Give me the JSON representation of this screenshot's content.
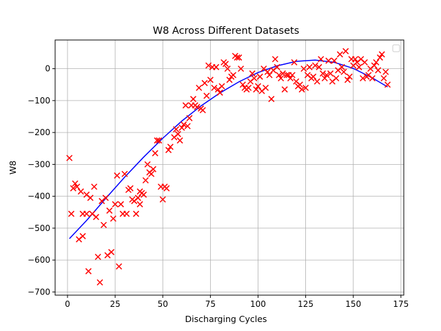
{
  "chart_data": {
    "type": "scatter",
    "title": "W8 Across Different Datasets",
    "xlabel": "Discharging Cycles",
    "ylabel": "W8",
    "xlim": [
      -6.5,
      176.5
    ],
    "ylim": [
      -710,
      90
    ],
    "xticks": [
      0,
      25,
      50,
      75,
      100,
      125,
      150,
      175
    ],
    "yticks": [
      -700,
      -600,
      -500,
      -400,
      -300,
      -200,
      -100,
      0
    ],
    "grid": true,
    "legend": {
      "placement": "top-right",
      "entries": []
    },
    "marker_color": "#ff0000",
    "line_color": "#0000ff",
    "series": [
      {
        "kind": "scatter",
        "marker": "x",
        "points": [
          [
            1,
            -280
          ],
          [
            2,
            -455
          ],
          [
            3,
            -375
          ],
          [
            4,
            -360
          ],
          [
            5,
            -370
          ],
          [
            6,
            -535
          ],
          [
            7,
            -385
          ],
          [
            8,
            -525
          ],
          [
            8,
            -455
          ],
          [
            10,
            -395
          ],
          [
            10,
            -455
          ],
          [
            11,
            -635
          ],
          [
            12,
            -405
          ],
          [
            13,
            -455
          ],
          [
            14,
            -370
          ],
          [
            15,
            -465
          ],
          [
            16,
            -590
          ],
          [
            17,
            -670
          ],
          [
            18,
            -415
          ],
          [
            19,
            -490
          ],
          [
            20,
            -405
          ],
          [
            21,
            -585
          ],
          [
            22,
            -445
          ],
          [
            23,
            -575
          ],
          [
            24,
            -470
          ],
          [
            25,
            -425
          ],
          [
            26,
            -335
          ],
          [
            27,
            -620
          ],
          [
            28,
            -425
          ],
          [
            29,
            -455
          ],
          [
            30,
            -330
          ],
          [
            31,
            -455
          ],
          [
            32,
            -380
          ],
          [
            33,
            -375
          ],
          [
            34,
            -410
          ],
          [
            35,
            -415
          ],
          [
            36,
            -455
          ],
          [
            37,
            -405
          ],
          [
            38,
            -425
          ],
          [
            38,
            -385
          ],
          [
            39,
            -390
          ],
          [
            40,
            -395
          ],
          [
            41,
            -350
          ],
          [
            42,
            -300
          ],
          [
            43,
            -325
          ],
          [
            44,
            -330
          ],
          [
            45,
            -315
          ],
          [
            46,
            -265
          ],
          [
            47,
            -225
          ],
          [
            48,
            -225
          ],
          [
            49,
            -370
          ],
          [
            50,
            -410
          ],
          [
            51,
            -370
          ],
          [
            52,
            -375
          ],
          [
            53,
            -255
          ],
          [
            54,
            -245
          ],
          [
            56,
            -215
          ],
          [
            57,
            -190
          ],
          [
            58,
            -205
          ],
          [
            59,
            -225
          ],
          [
            60,
            -185
          ],
          [
            61,
            -175
          ],
          [
            62,
            -115
          ],
          [
            63,
            -180
          ],
          [
            64,
            -155
          ],
          [
            65,
            -115
          ],
          [
            66,
            -95
          ],
          [
            67,
            -115
          ],
          [
            68,
            -120
          ],
          [
            69,
            -60
          ],
          [
            70,
            -125
          ],
          [
            71,
            -130
          ],
          [
            72,
            -45
          ],
          [
            73,
            -85
          ],
          [
            74,
            10
          ],
          [
            75,
            -35
          ],
          [
            76,
            5
          ],
          [
            77,
            -60
          ],
          [
            78,
            5
          ],
          [
            79,
            -65
          ],
          [
            80,
            -75
          ],
          [
            81,
            -55
          ],
          [
            82,
            20
          ],
          [
            83,
            15
          ],
          [
            84,
            0
          ],
          [
            85,
            -35
          ],
          [
            86,
            -25
          ],
          [
            87,
            -20
          ],
          [
            88,
            40
          ],
          [
            89,
            35
          ],
          [
            90,
            35
          ],
          [
            91,
            0
          ],
          [
            92,
            -50
          ],
          [
            93,
            -60
          ],
          [
            94,
            -65
          ],
          [
            95,
            -60
          ],
          [
            96,
            -40
          ],
          [
            97,
            -15
          ],
          [
            98,
            -30
          ],
          [
            99,
            -65
          ],
          [
            100,
            -55
          ],
          [
            101,
            -25
          ],
          [
            102,
            -70
          ],
          [
            103,
            0
          ],
          [
            104,
            -60
          ],
          [
            105,
            -10
          ],
          [
            106,
            -20
          ],
          [
            107,
            -95
          ],
          [
            108,
            -5
          ],
          [
            109,
            30
          ],
          [
            110,
            5
          ],
          [
            111,
            -20
          ],
          [
            112,
            -30
          ],
          [
            113,
            -15
          ],
          [
            114,
            -65
          ],
          [
            115,
            -20
          ],
          [
            116,
            -20
          ],
          [
            117,
            -30
          ],
          [
            118,
            -20
          ],
          [
            119,
            20
          ],
          [
            120,
            -40
          ],
          [
            121,
            -55
          ],
          [
            122,
            -50
          ],
          [
            123,
            -65
          ],
          [
            124,
            0
          ],
          [
            125,
            -60
          ],
          [
            126,
            -20
          ],
          [
            127,
            5
          ],
          [
            128,
            -30
          ],
          [
            129,
            -25
          ],
          [
            130,
            10
          ],
          [
            131,
            -40
          ],
          [
            132,
            5
          ],
          [
            133,
            30
          ],
          [
            134,
            -15
          ],
          [
            135,
            -30
          ],
          [
            136,
            -20
          ],
          [
            137,
            25
          ],
          [
            138,
            -15
          ],
          [
            139,
            -40
          ],
          [
            140,
            25
          ],
          [
            141,
            -30
          ],
          [
            142,
            -5
          ],
          [
            143,
            45
          ],
          [
            144,
            5
          ],
          [
            145,
            -10
          ],
          [
            146,
            55
          ],
          [
            147,
            -35
          ],
          [
            148,
            -25
          ],
          [
            149,
            30
          ],
          [
            150,
            10
          ],
          [
            151,
            30
          ],
          [
            152,
            20
          ],
          [
            153,
            5
          ],
          [
            154,
            30
          ],
          [
            155,
            -30
          ],
          [
            156,
            20
          ],
          [
            157,
            -25
          ],
          [
            158,
            -20
          ],
          [
            159,
            0
          ],
          [
            160,
            -30
          ],
          [
            161,
            10
          ],
          [
            162,
            20
          ],
          [
            163,
            -5
          ],
          [
            164,
            35
          ],
          [
            165,
            45
          ],
          [
            166,
            -30
          ],
          [
            167,
            -10
          ],
          [
            168,
            -50
          ]
        ]
      },
      {
        "kind": "line",
        "x": [
          1,
          10,
          20,
          30,
          40,
          50,
          60,
          70,
          80,
          90,
          100,
          110,
          120,
          130,
          140,
          150,
          160,
          168
        ],
        "values": [
          -533,
          -476,
          -407,
          -340,
          -277,
          -218,
          -164,
          -117,
          -76,
          -41,
          -12,
          9,
          23,
          27,
          20,
          1,
          -29,
          -57
        ]
      }
    ]
  }
}
